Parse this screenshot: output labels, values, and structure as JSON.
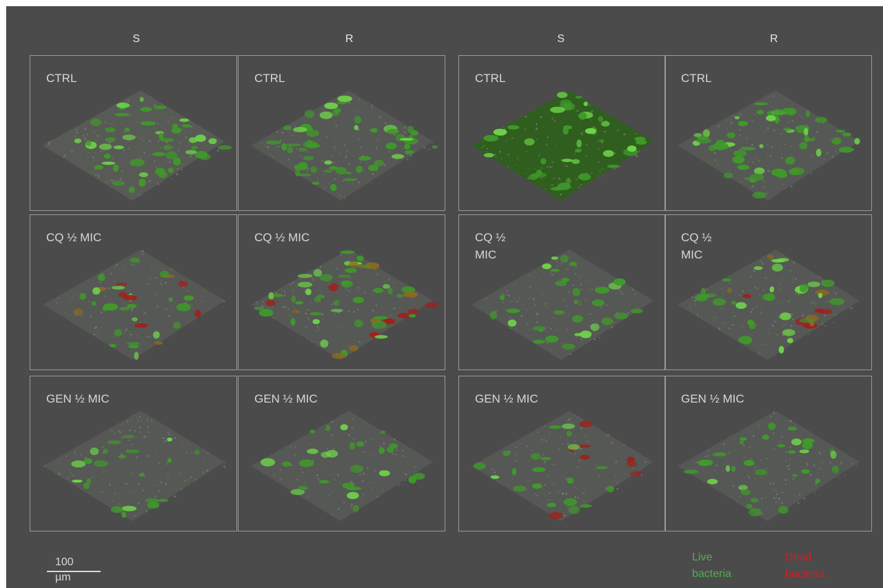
{
  "column_headers": [
    "S",
    "R",
    "S",
    "R"
  ],
  "panels": [
    {
      "label": "CTRL",
      "stain": "dense-live"
    },
    {
      "label": "CTRL",
      "stain": "patchy-live"
    },
    {
      "label": "CTRL",
      "stain": "very-dense-live"
    },
    {
      "label": "CTRL",
      "stain": "patchy-live"
    },
    {
      "label": "CQ ½ MIC",
      "stain": "sparse-live-some-dead"
    },
    {
      "label": "CQ ½ MIC",
      "stain": "mixed-live-dead"
    },
    {
      "label": "CQ ½\nMIC",
      "stain": "sparse-live"
    },
    {
      "label": "CQ ½\nMIC",
      "stain": "mixed-live-dead"
    },
    {
      "label": "GEN ½ MIC",
      "stain": "sparse-live"
    },
    {
      "label": "GEN ½ MIC",
      "stain": "sparse-live"
    },
    {
      "label": "GEN ½ MIC",
      "stain": "patchy-live-yellow"
    },
    {
      "label": "GEN ½ MIC",
      "stain": "sparse-live"
    }
  ],
  "scale_bar": {
    "label": "100\nµm"
  },
  "legend": {
    "live": {
      "text": "Live\nbacteria",
      "color": "#4fb14a"
    },
    "dead": {
      "text": "Dead\nbacteria",
      "color": "#d11f1f"
    }
  },
  "colors": {
    "background": "#4b4b4b",
    "panel_border": "#9a9a9a",
    "live_green": "#3f9a2a",
    "bright_green": "#6fd44a",
    "dead_red": "#a0201c"
  }
}
